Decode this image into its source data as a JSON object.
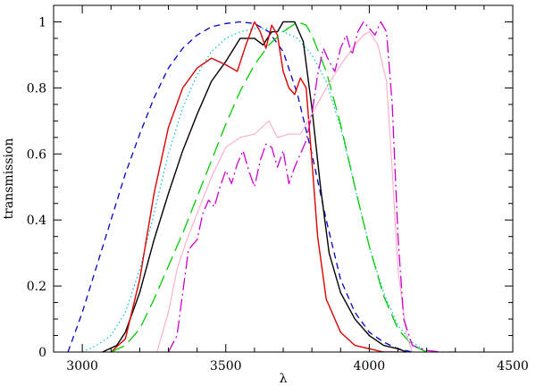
{
  "chart_data": {
    "type": "line",
    "title": "",
    "xlabel": "λ",
    "ylabel": "transmission",
    "xlim": [
      2900,
      4500
    ],
    "ylim": [
      0,
      1.05
    ],
    "grid": false,
    "legend": "none",
    "x_ticks": [
      3000,
      3500,
      4000,
      4500
    ],
    "x_tick_labels": [
      "3000",
      "3500",
      "4000",
      "4500"
    ],
    "y_ticks": [
      0,
      0.2,
      0.4,
      0.6,
      0.8,
      1
    ],
    "y_tick_labels": [
      "0",
      "0.2",
      "0.4",
      "0.6",
      "0.8",
      "1"
    ],
    "series": [
      {
        "color": "#0000cc",
        "dash": "7,5",
        "width": 1.3,
        "x": [
          2950,
          3000,
          3050,
          3100,
          3150,
          3200,
          3250,
          3300,
          3350,
          3400,
          3450,
          3500,
          3550,
          3600,
          3650,
          3700,
          3750,
          3800,
          3850,
          3900,
          3950,
          4000,
          4050,
          4100,
          4150
        ],
        "y": [
          0,
          0.12,
          0.26,
          0.4,
          0.54,
          0.66,
          0.77,
          0.86,
          0.92,
          0.96,
          0.985,
          0.995,
          1.0,
          0.995,
          0.97,
          0.91,
          0.78,
          0.6,
          0.4,
          0.22,
          0.12,
          0.06,
          0.03,
          0.01,
          0
        ]
      },
      {
        "color": "#00bbdd",
        "dash": "1.5,3",
        "width": 1.2,
        "x": [
          3000,
          3050,
          3100,
          3150,
          3200,
          3250,
          3300,
          3350,
          3400,
          3450,
          3500,
          3550,
          3600,
          3650,
          3700,
          3750,
          3800,
          3850,
          3900,
          3950,
          4000,
          4050,
          4100,
          4150,
          4200
        ],
        "y": [
          0,
          0.02,
          0.05,
          0.12,
          0.25,
          0.42,
          0.6,
          0.74,
          0.84,
          0.91,
          0.95,
          0.97,
          0.98,
          0.98,
          0.97,
          0.95,
          0.9,
          0.82,
          0.68,
          0.5,
          0.32,
          0.18,
          0.08,
          0.03,
          0
        ]
      },
      {
        "color": "#000000",
        "dash": "",
        "width": 1.4,
        "x": [
          3070,
          3120,
          3150,
          3200,
          3250,
          3300,
          3350,
          3400,
          3450,
          3500,
          3550,
          3600,
          3630,
          3660,
          3680,
          3700,
          3720,
          3740,
          3770,
          3800,
          3830,
          3860,
          3900,
          3950,
          4000,
          4050,
          4100,
          4130
        ],
        "y": [
          0,
          0.02,
          0.06,
          0.18,
          0.34,
          0.48,
          0.61,
          0.72,
          0.82,
          0.88,
          0.95,
          0.95,
          0.93,
          0.97,
          0.97,
          1.0,
          1.0,
          1.0,
          0.94,
          0.74,
          0.5,
          0.3,
          0.18,
          0.1,
          0.05,
          0.02,
          0.01,
          0
        ]
      },
      {
        "color": "#dd0000",
        "dash": "",
        "width": 1.4,
        "x": [
          3100,
          3150,
          3200,
          3250,
          3300,
          3350,
          3400,
          3450,
          3500,
          3540,
          3570,
          3600,
          3620,
          3640,
          3660,
          3680,
          3700,
          3720,
          3740,
          3760,
          3780,
          3800,
          3820,
          3850,
          3900,
          3950,
          4000,
          4050,
          4100
        ],
        "y": [
          0,
          0.04,
          0.22,
          0.48,
          0.68,
          0.8,
          0.86,
          0.89,
          0.87,
          0.85,
          0.93,
          1.0,
          0.97,
          0.92,
          0.99,
          0.96,
          0.85,
          0.8,
          0.78,
          0.83,
          0.8,
          0.58,
          0.35,
          0.16,
          0.06,
          0.02,
          0.01,
          0,
          0
        ]
      },
      {
        "color": "#00cc00",
        "dash": "16,7",
        "width": 1.3,
        "x": [
          3100,
          3150,
          3200,
          3250,
          3300,
          3350,
          3400,
          3450,
          3500,
          3550,
          3600,
          3650,
          3700,
          3750,
          3780,
          3800,
          3850,
          3900,
          3950,
          4000,
          4050,
          4100,
          4150,
          4200
        ],
        "y": [
          0,
          0.02,
          0.07,
          0.16,
          0.26,
          0.36,
          0.47,
          0.58,
          0.69,
          0.79,
          0.87,
          0.93,
          0.97,
          1.0,
          0.99,
          0.96,
          0.85,
          0.69,
          0.5,
          0.32,
          0.17,
          0.07,
          0.02,
          0
        ]
      },
      {
        "color": "#ffaacc",
        "dash": "",
        "width": 1.1,
        "x": [
          3260,
          3300,
          3330,
          3360,
          3400,
          3450,
          3500,
          3550,
          3600,
          3650,
          3680,
          3720,
          3760,
          3800,
          3850,
          3900,
          3950,
          3980,
          4000,
          4030,
          4060,
          4080,
          4100,
          4130,
          4150
        ],
        "y": [
          0,
          0.12,
          0.25,
          0.33,
          0.42,
          0.53,
          0.62,
          0.65,
          0.66,
          0.7,
          0.65,
          0.66,
          0.66,
          0.72,
          0.8,
          0.87,
          0.93,
          0.96,
          0.97,
          0.93,
          0.82,
          0.55,
          0.25,
          0.05,
          0
        ]
      },
      {
        "color": "#cc00cc",
        "dash": "14,4,2,4",
        "width": 1.3,
        "x": [
          3300,
          3330,
          3350,
          3370,
          3400,
          3420,
          3440,
          3460,
          3480,
          3500,
          3520,
          3540,
          3560,
          3580,
          3600,
          3620,
          3640,
          3660,
          3680,
          3700,
          3720,
          3740,
          3760,
          3780,
          3800,
          3820,
          3840,
          3860,
          3880,
          3900,
          3920,
          3940,
          3960,
          3980,
          4000,
          4020,
          4040,
          4060,
          4080,
          4100,
          4120,
          4150,
          4200,
          4250,
          4300
        ],
        "y": [
          0,
          0.05,
          0.18,
          0.31,
          0.34,
          0.42,
          0.46,
          0.44,
          0.5,
          0.55,
          0.51,
          0.57,
          0.61,
          0.55,
          0.5,
          0.58,
          0.63,
          0.62,
          0.56,
          0.61,
          0.51,
          0.56,
          0.6,
          0.64,
          0.72,
          0.84,
          0.92,
          0.88,
          0.85,
          0.92,
          0.96,
          0.9,
          0.97,
          1.0,
          0.98,
          0.96,
          1.0,
          0.97,
          0.75,
          0.35,
          0.1,
          0.02,
          0.005,
          0,
          0
        ]
      }
    ]
  }
}
